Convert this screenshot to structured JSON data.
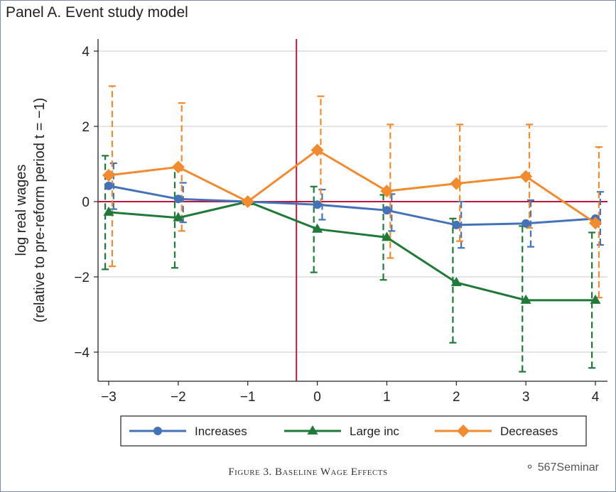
{
  "panel_title": "Panel A. Event study model",
  "caption": "Figure 3. Baseline Wage Effects",
  "watermark": "567Seminar",
  "chart_data": {
    "type": "line",
    "title": "Panel A. Event study model",
    "xlabel": "",
    "ylabel": "log real wages",
    "ylabel2": "(relative to pre-reform period t = −1)",
    "x": [
      -3,
      -2,
      -1,
      0,
      1,
      2,
      3,
      4
    ],
    "xticks": [
      "−3",
      "−2",
      "−1",
      "0",
      "1",
      "2",
      "3",
      "4"
    ],
    "yticks": [
      {
        "v": 4,
        "label": "4"
      },
      {
        "v": 2,
        "label": "2"
      },
      {
        "v": 0,
        "label": "0"
      },
      {
        "v": -2,
        "label": "−2"
      },
      {
        "v": -4,
        "label": "−4"
      }
    ],
    "xlim": [
      -3.15,
      4.15
    ],
    "ylim": [
      -4.8,
      4.3
    ],
    "grid": true,
    "reference_lines": {
      "horizontal": 0,
      "vertical": -0.3,
      "color": "#c0143c"
    },
    "legend_position": "bottom",
    "series": [
      {
        "name": "Increases",
        "color": "#4472b8",
        "marker": "circle",
        "offset": 0.07,
        "values": [
          0.42,
          0.07,
          0,
          -0.08,
          -0.23,
          -0.62,
          -0.58,
          -0.45
        ],
        "ci_low": [
          -0.2,
          -0.55,
          0,
          -0.48,
          -0.78,
          -1.23,
          -1.2,
          -1.15
        ],
        "ci_high": [
          1.02,
          0.5,
          0,
          0.32,
          0.2,
          0.0,
          0.04,
          0.26
        ]
      },
      {
        "name": "Large inc",
        "color": "#1f7a3a",
        "marker": "triangle",
        "offset": -0.05,
        "values": [
          -0.28,
          -0.43,
          0,
          -0.73,
          -0.95,
          -2.15,
          -2.62,
          -2.62
        ],
        "ci_low": [
          -1.8,
          -1.76,
          0,
          -1.88,
          -2.08,
          -3.75,
          -4.52,
          -4.42
        ],
        "ci_high": [
          1.22,
          0.9,
          0,
          0.4,
          0.18,
          -0.45,
          -0.65,
          -0.82
        ]
      },
      {
        "name": "Decreases",
        "color": "#f28a2e",
        "marker": "diamond",
        "offset": 0.05,
        "values": [
          0.7,
          0.92,
          0,
          1.37,
          0.28,
          0.48,
          0.67,
          -0.57
        ],
        "ci_low": [
          -1.72,
          -0.78,
          0,
          -0.08,
          -1.5,
          -1.05,
          -0.7,
          -2.55
        ],
        "ci_high": [
          3.07,
          2.62,
          0,
          2.8,
          2.05,
          2.05,
          2.05,
          1.45
        ]
      }
    ]
  }
}
